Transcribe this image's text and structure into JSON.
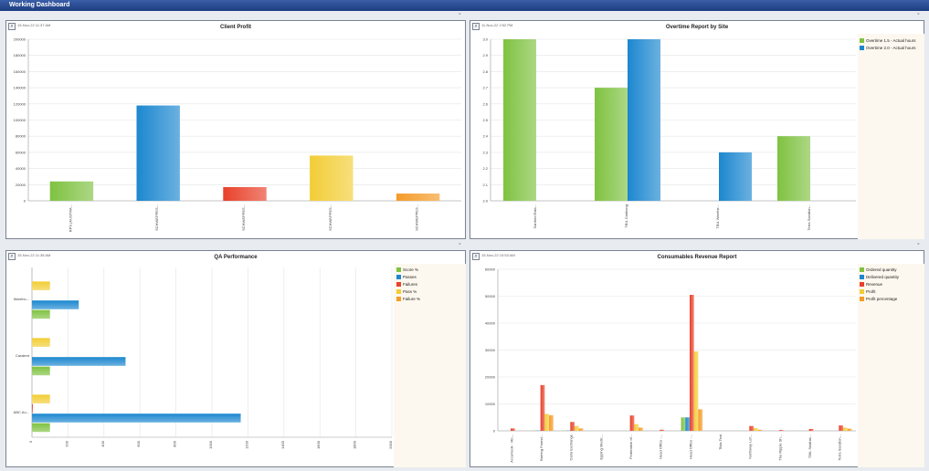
{
  "window": {
    "title": "Working Dashboard"
  },
  "panels": {
    "client_profit": {
      "title": "Client Profit",
      "timestamp": "15-Nov-22 11:37 AM",
      "maximize_glyph": "▫",
      "zoom_glyph": "⌕"
    },
    "overtime": {
      "title": "Overtime Report by Site",
      "timestamp": "11-Nov-22 2:52 PM",
      "maximize_glyph": "▫",
      "zoom_glyph": "⌕"
    },
    "qa": {
      "title": "QA Performance",
      "timestamp": "15-Nov-22 11:38 AM",
      "maximize_glyph": "▫",
      "zoom_glyph": "⌕"
    },
    "consumables": {
      "title": "Consumables Revenue Report",
      "timestamp": "15-Nov-22 10:53 AM",
      "maximize_glyph": "▫",
      "zoom_glyph": "⌕"
    }
  },
  "colors": {
    "green": "#7fc241",
    "blue": "#1c87cf",
    "red": "#e8412a",
    "yellow": "#f2cd36",
    "orange": "#f59b28"
  },
  "chart_data": [
    {
      "id": "client_profit",
      "type": "bar",
      "title": "Client Profit",
      "categories": [
        "RPS (AUSTRA...",
        "SCHWEPPES...",
        "SCHWEPPES...",
        "SCHWEPPES...",
        "SCHWEPPES..."
      ],
      "values": [
        24000,
        118000,
        17000,
        56000,
        9000
      ],
      "bar_colors": [
        "#7fc241",
        "#1c87cf",
        "#e8412a",
        "#f2cd36",
        "#f59b28"
      ],
      "ylim": [
        0,
        200000
      ],
      "yticks": [
        "0",
        "20000",
        "40000",
        "60000",
        "80000",
        "100000",
        "120000",
        "140000",
        "160000",
        "180000",
        "200000"
      ],
      "grid": true
    },
    {
      "id": "overtime",
      "type": "bar",
      "title": "Overtime Report by Site",
      "categories": [
        "Sanford Esta...",
        "TBIL Caribong",
        "TBIL Warehe...",
        "Terra Sandton..."
      ],
      "series": [
        {
          "name": "Overtime 1.5 - Actual hours",
          "color": "#7fc241",
          "values": [
            3.0,
            2.7,
            null,
            2.4
          ]
        },
        {
          "name": "Overtime 2.0 - Actual hours",
          "color": "#1c87cf",
          "values": [
            null,
            3.0,
            2.3,
            null
          ]
        }
      ],
      "ylim": [
        2.0,
        3.0
      ],
      "yticks": [
        "2.0",
        "2.1",
        "2.2",
        "2.3",
        "2.4",
        "2.5",
        "2.6",
        "2.7",
        "2.8",
        "2.9",
        "3.0"
      ],
      "legend": "top-right",
      "grid": true
    },
    {
      "id": "qa",
      "type": "bar",
      "orientation": "horizontal",
      "title": "QA Performance",
      "categories": [
        "Wareho...",
        "Caralent",
        "ABC Au..."
      ],
      "series": [
        {
          "name": "Score %",
          "color": "#7fc241",
          "values": [
            100,
            100,
            100
          ]
        },
        {
          "name": "Passes",
          "color": "#1c87cf",
          "values": [
            260,
            520,
            1160
          ]
        },
        {
          "name": "Failures",
          "color": "#e8412a",
          "values": [
            0,
            0,
            5
          ]
        },
        {
          "name": "Pass %",
          "color": "#f2cd36",
          "values": [
            100,
            100,
            100
          ]
        },
        {
          "name": "Failure %",
          "color": "#f59b28",
          "values": [
            0,
            0,
            0
          ]
        }
      ],
      "xlim": [
        0,
        2000
      ],
      "xticks": [
        "0",
        "200",
        "400",
        "600",
        "800",
        "1000",
        "1200",
        "1400",
        "1600",
        "1800",
        "2000"
      ],
      "legend": "top-right",
      "grid": true
    },
    {
      "id": "consumables",
      "type": "bar",
      "title": "Consumables Revenue Report",
      "categories": [
        "AccuNook - Mo...",
        "Barring Farmd...",
        "Carla Exchange",
        "Epping Medic...",
        "Federation of...",
        "Head Office -...",
        "Head Office -...",
        "Tilda Test",
        "Northway Lef...",
        "The Ripple Sh...",
        "TBIL Smithst...",
        "Terra Sandton..."
      ],
      "series": [
        {
          "name": "Ordered quantity",
          "color": "#7fc241",
          "values": [
            0,
            100,
            100,
            0,
            0,
            0,
            5000,
            0,
            0,
            0,
            0,
            0
          ]
        },
        {
          "name": "Delivered quantity",
          "color": "#1c87cf",
          "values": [
            0,
            100,
            100,
            0,
            0,
            0,
            5000,
            0,
            0,
            0,
            0,
            0
          ]
        },
        {
          "name": "Revenue",
          "color": "#e8412a",
          "values": [
            900,
            17000,
            3300,
            0,
            5700,
            400,
            50500,
            0,
            1800,
            300,
            700,
            2000
          ]
        },
        {
          "name": "Profit",
          "color": "#f2cd36",
          "values": [
            0,
            6300,
            1800,
            0,
            2500,
            0,
            29500,
            0,
            1000,
            0,
            0,
            1200
          ]
        },
        {
          "name": "Profit percentage",
          "color": "#f59b28",
          "values": [
            0,
            5800,
            900,
            0,
            1200,
            0,
            8000,
            0,
            400,
            0,
            0,
            800
          ]
        }
      ],
      "ylim": [
        0,
        60000
      ],
      "yticks": [
        "0",
        "10000",
        "20000",
        "30000",
        "40000",
        "50000",
        "60000"
      ],
      "legend": "top-right",
      "grid": true
    }
  ]
}
